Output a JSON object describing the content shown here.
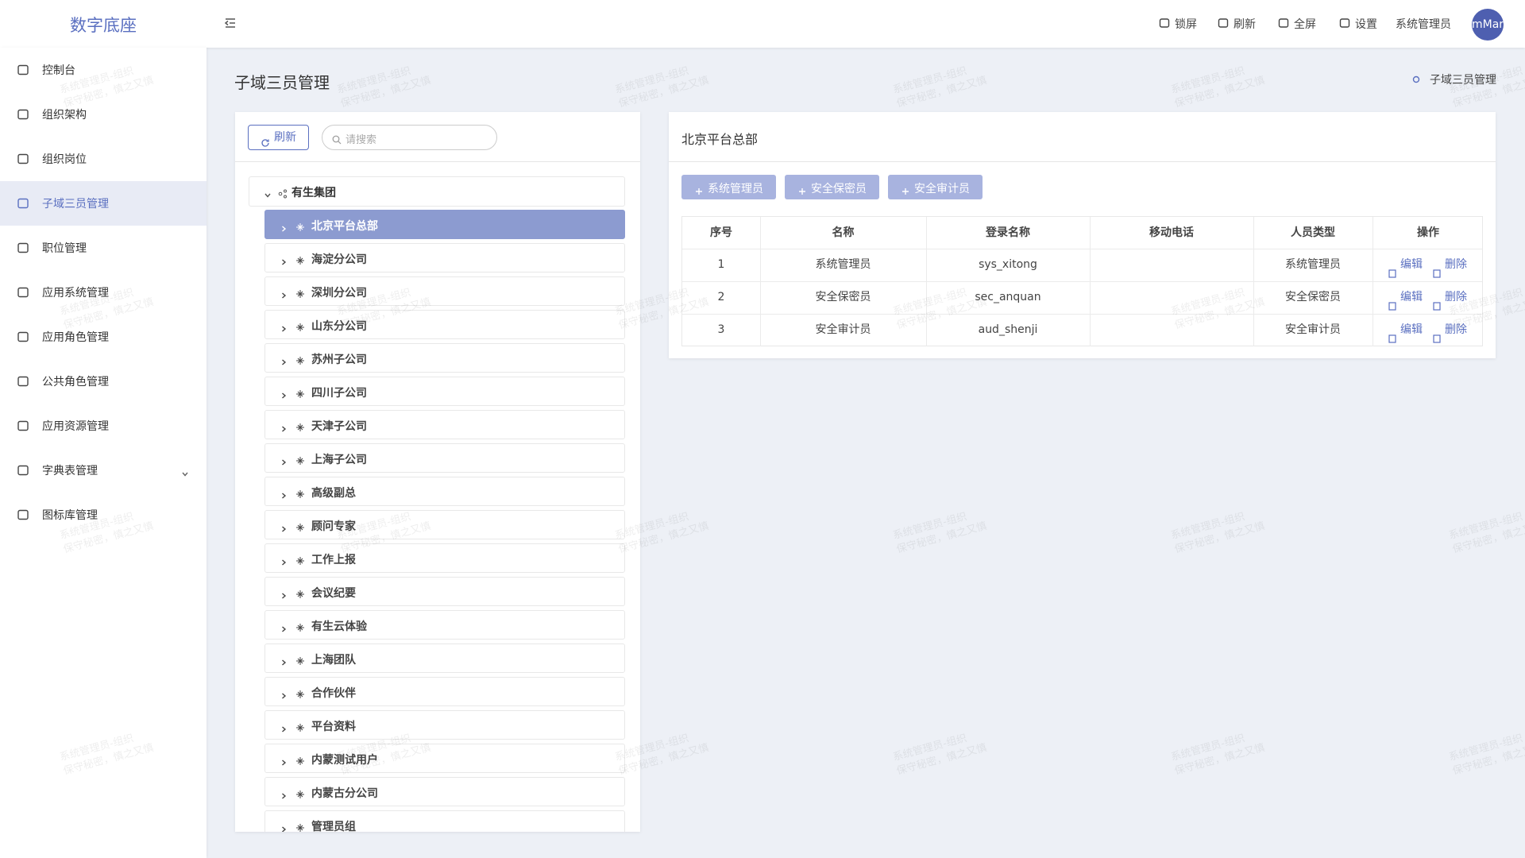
{
  "header": {
    "title": "数字底座",
    "toolbar": [
      "锁屏",
      "刷新",
      "全屏",
      "设置"
    ],
    "user": "系统管理员",
    "avatar": "mMar"
  },
  "sidebar": {
    "items": [
      "控制台",
      "组织架构",
      "组织岗位",
      "子域三员管理",
      "职位管理",
      "应用系统管理",
      "应用角色管理",
      "公共角色管理",
      "应用资源管理",
      "字典表管理",
      "图标库管理"
    ],
    "active": 3
  },
  "page": {
    "title": "子域三员管理",
    "breadcrumb": "子域三员管理"
  },
  "tree": {
    "refresh": "刷新",
    "search_placeholder": "请搜索",
    "root": "有生集团",
    "children": [
      "北京平台总部",
      "海淀分公司",
      "深圳分公司",
      "山东分公司",
      "苏州子公司",
      "四川子公司",
      "天津子公司",
      "上海子公司",
      "高级副总",
      "顾问专家",
      "工作上报",
      "会议纪要",
      "有生云体验",
      "上海团队",
      "合作伙伴",
      "平台资料",
      "内蒙测试用户",
      "内蒙古分公司",
      "管理员组"
    ],
    "selected": 0
  },
  "detail": {
    "title": "北京平台总部",
    "buttons": [
      "系统管理员",
      "安全保密员",
      "安全审计员"
    ],
    "table": {
      "columns": [
        "序号",
        "名称",
        "登录名称",
        "移动电话",
        "人员类型",
        "操作"
      ],
      "rows": [
        {
          "no": 1,
          "name": "系统管理员",
          "login": "sys_xitong",
          "type": "系统管理员"
        },
        {
          "no": 2,
          "name": "安全保密员",
          "login": "sec_anquan",
          "type": "安全保密员"
        },
        {
          "no": 3,
          "name": "安全审计员",
          "login": "aud_shenji",
          "type": "安全审计员"
        }
      ],
      "actions": [
        "编辑",
        "删除"
      ]
    }
  },
  "watermark": {
    "lines": [
      "系统管理员-组织",
      "保守秘密，慎之又慎"
    ]
  }
}
